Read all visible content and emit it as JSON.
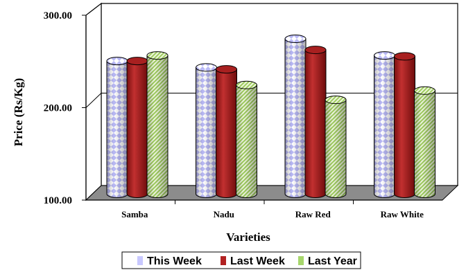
{
  "chart_data": {
    "type": "bar",
    "title": "",
    "xlabel": "Varieties",
    "ylabel": "Price (Rs/Kg)",
    "ylim": [
      100,
      300
    ],
    "yticks": [
      "100.00",
      "200.00",
      "300.00"
    ],
    "categories": [
      "Samba",
      "Nadu",
      "Raw Red",
      "Raw White"
    ],
    "series": [
      {
        "name": "This Week",
        "values": [
          246,
          239,
          270,
          252
        ],
        "color": "#c8c8ff",
        "pattern": "diamond-check"
      },
      {
        "name": "Last Week",
        "values": [
          246,
          237,
          258,
          251
        ],
        "color": "#b22222",
        "pattern": "solid"
      },
      {
        "name": "Last Year",
        "values": [
          252,
          220,
          204,
          214
        ],
        "color": "#c8e59a",
        "pattern": "diagonal-hatch"
      }
    ],
    "grid": true,
    "legend_position": "bottom"
  }
}
